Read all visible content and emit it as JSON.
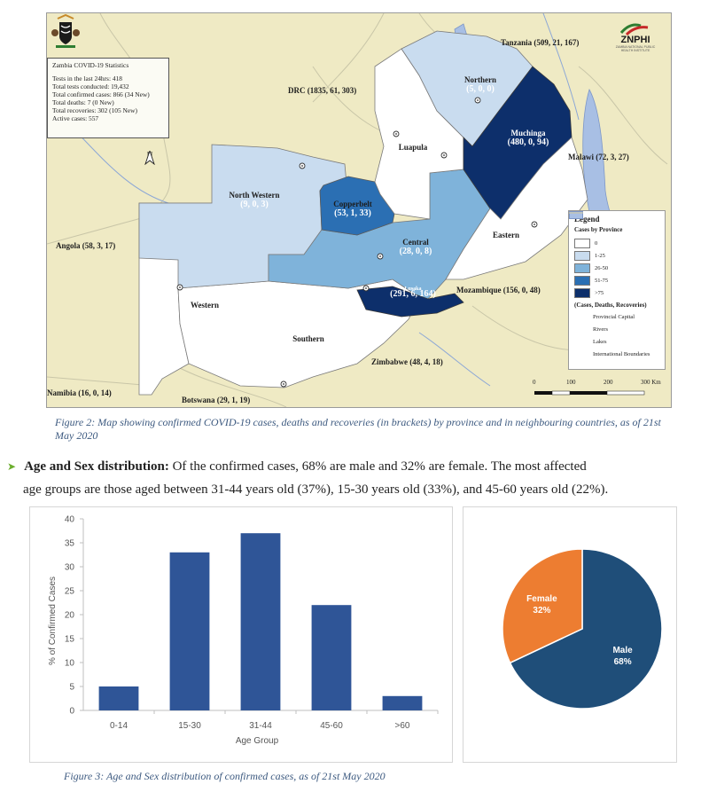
{
  "map": {
    "stats_box": {
      "title": "Zambia COVID-19 Statistics",
      "lines": [
        "Tests in the last 24hrs: 418",
        "Total tests conducted: 19,432",
        "Total confirmed cases: 866 (34 New)",
        "Total deaths: 7 (0 New)",
        "Total recoveries: 302 (105 New)",
        "Active cases: 557"
      ]
    },
    "logo": {
      "name": "ZNPHI",
      "sub": "ZAMBIA NATIONAL PUBLIC HEALTH INSTITUTE"
    },
    "north_label": "N",
    "countries": {
      "tanzania": "Tanzania (509, 21, 167)",
      "drc": "DRC (1835, 61, 303)",
      "malawi": "Malawi (72, 3, 27)",
      "angola": "Angola (58, 3, 17)",
      "mozambique": "Mozambique (156, 0, 48)",
      "zimbabwe": "Zimbabwe (48, 4, 18)",
      "namibia": "Namibia (16, 0, 14)",
      "botswana": "Botswana (29, 1, 19)"
    },
    "provinces": {
      "northern": {
        "name": "Northern",
        "value": "(5, 0, 0)"
      },
      "muchinga": {
        "name": "Muchinga",
        "value": "(480, 0, 94)"
      },
      "luapula": {
        "name": "Luapula",
        "value": ""
      },
      "north_western": {
        "name": "North Western",
        "value": "(9, 0, 3)"
      },
      "copperbelt": {
        "name": "Copperbelt",
        "value": "(53, 1, 33)"
      },
      "central": {
        "name": "Central",
        "value": "(28, 0, 8)"
      },
      "eastern": {
        "name": "Eastern",
        "value": ""
      },
      "lusaka": {
        "name": "Lusaka",
        "value": "(291, 6, 164)"
      },
      "western": {
        "name": "Western",
        "value": ""
      },
      "southern": {
        "name": "Southern",
        "value": ""
      }
    },
    "legend": {
      "title": "Legend",
      "subtitle": "Cases by Province",
      "items": [
        {
          "label": "0",
          "color": "#ffffff"
        },
        {
          "label": "1-25",
          "color": "#c9dcef"
        },
        {
          "label": "26-50",
          "color": "#7fb3da"
        },
        {
          "label": "51-75",
          "color": "#2b6fb3"
        },
        {
          "label": ">75",
          "color": "#0d2f6b"
        }
      ],
      "note": "(Cases, Deaths, Recoveries)",
      "symbols": [
        "Provincial Capital",
        "Rivers",
        "Lakes",
        "International Boundaries"
      ]
    },
    "scale": {
      "ticks": [
        "0",
        "100",
        "200",
        "300 Km"
      ]
    }
  },
  "figure2_caption": "Figure 2: Map showing confirmed COVID-19 cases, deaths and recoveries (in brackets) by province and in neighbouring countries, as of 21st May 2020",
  "paragraph": {
    "lead": "Age and Sex distribution:",
    "line1": " Of the confirmed cases, 68% are male and 32% are female. The most affected",
    "line2": "age groups are those aged between 31-44 years old (37%), 15-30 years old (33%), and 45-60 years old (22%)."
  },
  "chart_data": [
    {
      "type": "bar",
      "categories": [
        "0-14",
        "15-30",
        "31-44",
        "45-60",
        ">60"
      ],
      "values": [
        5,
        33,
        37,
        22,
        3
      ],
      "xlabel": "Age Group",
      "ylabel": "% of Confirmed Cases",
      "ylim": [
        0,
        40
      ],
      "yticks": [
        0,
        5,
        10,
        15,
        20,
        25,
        30,
        35,
        40
      ],
      "color": "#2f5597"
    },
    {
      "type": "pie",
      "labels": [
        "Male",
        "Female"
      ],
      "values": [
        68,
        32
      ],
      "value_labels": [
        "68%",
        "32%"
      ],
      "colors": [
        "#1f4e79",
        "#ed7d31"
      ]
    }
  ],
  "figure3_caption": "Figure 3: Age and Sex distribution of confirmed cases, as of 21st May 2020"
}
